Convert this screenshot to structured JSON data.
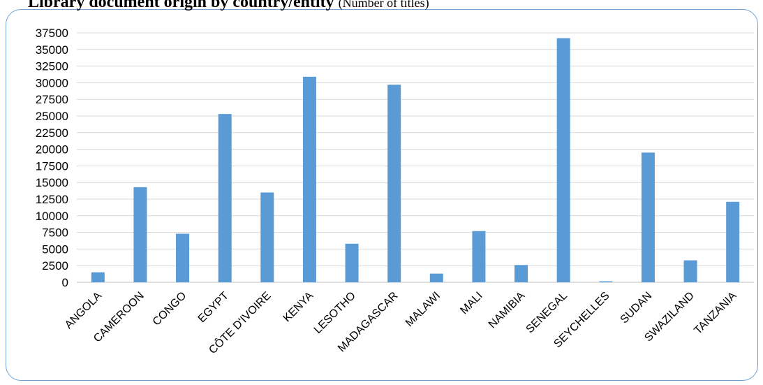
{
  "chart_data": {
    "type": "bar",
    "title": "Library document origin by country/entity",
    "subtitle": "(Number of titles)",
    "xlabel": "",
    "ylabel": "",
    "categories": [
      "ANGOLA",
      "CAMEROON",
      "CONGO",
      "EGYPT",
      "CÔTE D'IVOIRE",
      "KENYA",
      "LESOTHO",
      "MADAGASCAR",
      "MALAWI",
      "MALI",
      "NAMIBIA",
      "SENEGAL",
      "SEYCHELLES",
      "SUDAN",
      "SWAZILAND",
      "TANZANIA"
    ],
    "values": [
      1500,
      14300,
      7300,
      25300,
      13500,
      30900,
      5800,
      29700,
      1300,
      7700,
      2600,
      36700,
      150,
      19500,
      3300,
      12100
    ],
    "ylim": [
      0,
      37500
    ],
    "yticks": [
      "0",
      "2500",
      "5000",
      "7500",
      "10000",
      "12500",
      "15000",
      "17500",
      "20000",
      "22500",
      "25000",
      "27500",
      "30000",
      "32500",
      "35000",
      "37500"
    ],
    "grid": true,
    "bar_color": "#5b9bd5",
    "grid_color": "#d9d9d9"
  }
}
